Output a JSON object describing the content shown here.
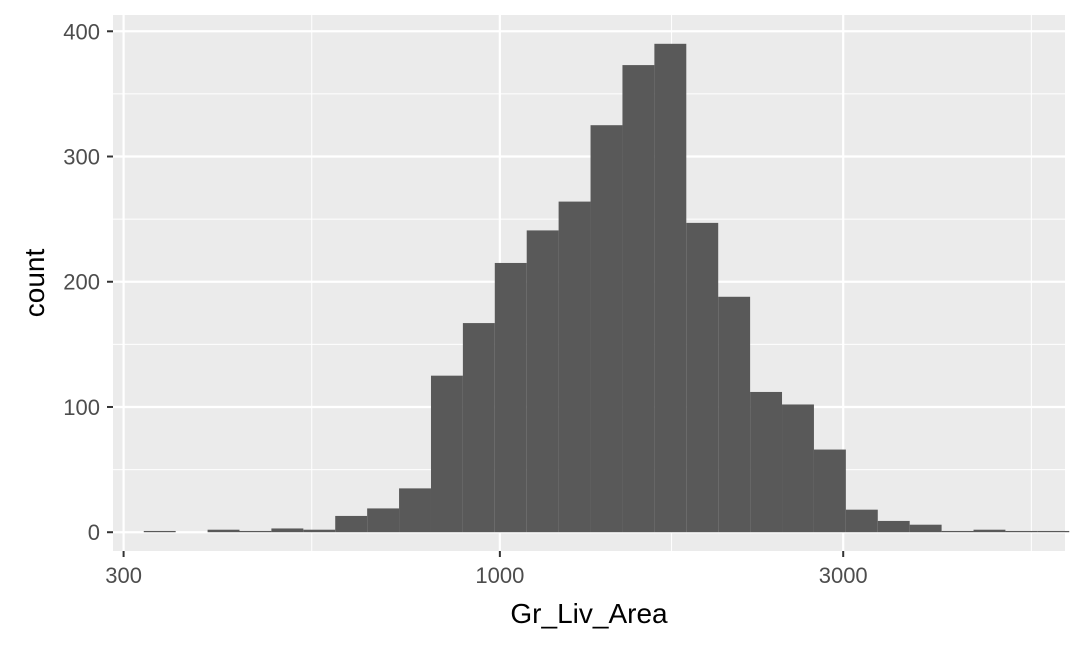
{
  "chart_data": {
    "type": "bar",
    "xlabel": "Gr_Liv_Area",
    "ylabel": "count",
    "x_scale": "log10",
    "xlim": [
      290,
      6100
    ],
    "ylim": [
      -15,
      413
    ],
    "x_ticks": [
      300,
      1000,
      3000
    ],
    "x_tick_labels": [
      "300",
      "1000",
      "3000"
    ],
    "y_ticks": [
      0,
      100,
      200,
      300,
      400
    ],
    "y_tick_labels": [
      "0",
      "100",
      "200",
      "300",
      "400"
    ],
    "grid": true,
    "bin_edges": [
      320.0,
      354.4,
      392.5,
      434.7,
      481.4,
      533.2,
      590.5,
      654.0,
      724.3,
      802.2,
      888.4,
      983.9,
      1089.7,
      1206.8,
      1336.6,
      1480.3,
      1639.5,
      1815.8,
      2011.0,
      2227.2,
      2466.6,
      2731.8,
      3025.5,
      3350.8,
      3711.1,
      4110.1,
      4552.0,
      5041.4,
      5583.4
    ],
    "counts": [
      1,
      0,
      2,
      1,
      3,
      2,
      13,
      19,
      35,
      125,
      167,
      215,
      241,
      264,
      325,
      373,
      390,
      247,
      188,
      112,
      102,
      66,
      18,
      9,
      6,
      1,
      2,
      1,
      1
    ],
    "bar_color": "#595959",
    "panel_color": "#ebebeb",
    "grid_color": "#ffffff"
  }
}
